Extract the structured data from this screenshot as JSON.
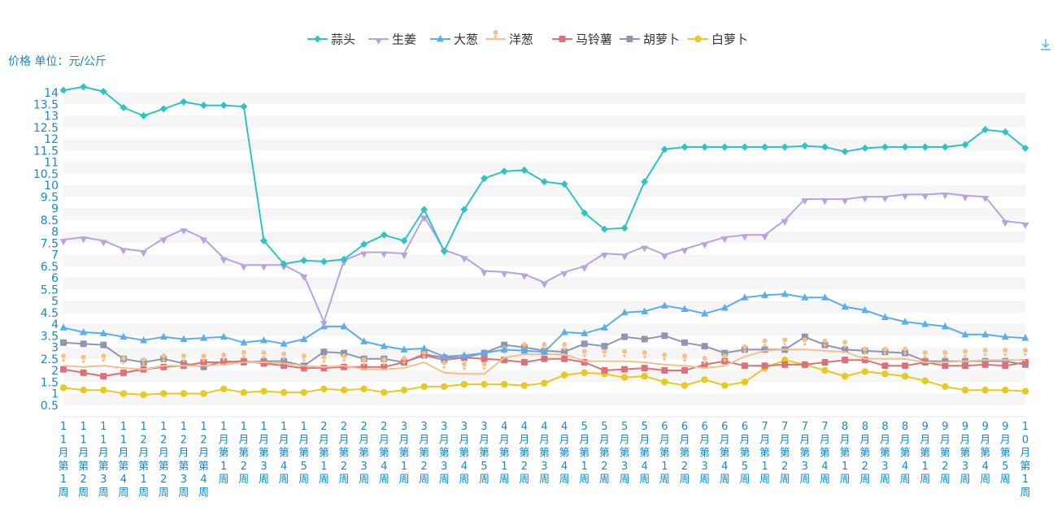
{
  "chart_data": {
    "type": "line",
    "ylabel": "价格 单位：元/公斤",
    "ylim": [
      0,
      14.5
    ],
    "yticks": [
      0.5,
      1,
      1.5,
      2,
      2.5,
      3,
      3.5,
      4,
      4.5,
      5,
      5.5,
      6,
      6.5,
      7,
      7.5,
      8,
      8.5,
      9,
      9.5,
      10,
      10.5,
      11,
      11.5,
      12,
      12.5,
      13,
      13.5,
      14
    ],
    "grid": "horizontal bands",
    "legend_position": "top-center",
    "categories": [
      "11月第1周",
      "11月第2周",
      "11月第3周",
      "11月第4周",
      "12月第1周",
      "12月第2周",
      "12月第3周",
      "12月第4周",
      "1月第1周",
      "1月第2周",
      "1月第3周",
      "1月第4周",
      "1月第5周",
      "2月第1周",
      "2月第2周",
      "2月第3周",
      "2月第4周",
      "3月第1周",
      "3月第2周",
      "3月第3周",
      "3月第4周",
      "3月第5周",
      "4月第1周",
      "4月第2周",
      "4月第3周",
      "4月第4周",
      "5月第1周",
      "5月第2周",
      "5月第3周",
      "5月第4周",
      "6月第1周",
      "6月第2周",
      "6月第3周",
      "6月第4周",
      "6月第5周",
      "7月第1周",
      "7月第2周",
      "7月第3周",
      "7月第4周",
      "8月第1周",
      "8月第2周",
      "8月第3周",
      "8月第4周",
      "9月第1周",
      "9月第2周",
      "9月第3周",
      "9月第4周",
      "9月第5周",
      "10月第1周"
    ],
    "series": [
      {
        "name": "蒜头",
        "color": "#2ec4c4",
        "marker": "diamond",
        "values": [
          14.1,
          14.25,
          14.05,
          13.35,
          13.0,
          13.3,
          13.6,
          13.45,
          13.45,
          13.4,
          7.6,
          6.6,
          6.75,
          6.7,
          6.8,
          7.45,
          7.85,
          7.6,
          8.95,
          7.15,
          8.95,
          10.3,
          10.6,
          10.65,
          10.15,
          10.05,
          8.8,
          8.1,
          8.15,
          10.15,
          11.55,
          11.65,
          11.65,
          11.65,
          11.65,
          11.65,
          11.65,
          11.7,
          11.65,
          11.45,
          11.6,
          11.65,
          11.65,
          11.65,
          11.65,
          11.75,
          12.4,
          12.3,
          11.6
        ]
      },
      {
        "name": "生姜",
        "color": "#b9a2e0",
        "marker": "triangle-down",
        "values": [
          7.65,
          7.75,
          7.6,
          7.25,
          7.15,
          7.7,
          8.1,
          7.7,
          6.85,
          6.55,
          6.55,
          6.55,
          6.1,
          4.1,
          6.75,
          7.1,
          7.1,
          7.05,
          8.65,
          7.2,
          6.9,
          6.3,
          6.25,
          6.15,
          5.8,
          6.25,
          6.5,
          7.05,
          7.0,
          7.35,
          7.0,
          7.25,
          7.5,
          7.75,
          7.85,
          7.85,
          8.5,
          9.4,
          9.4,
          9.4,
          9.5,
          9.5,
          9.6,
          9.6,
          9.65,
          9.55,
          9.5,
          8.45,
          8.35
        ]
      },
      {
        "name": "大葱",
        "color": "#5aaef0",
        "marker": "triangle-up",
        "values": [
          3.85,
          3.65,
          3.6,
          3.45,
          3.3,
          3.45,
          3.35,
          3.4,
          3.45,
          3.2,
          3.3,
          3.15,
          3.35,
          3.9,
          3.9,
          3.25,
          3.05,
          2.9,
          2.95,
          2.6,
          2.65,
          2.75,
          2.9,
          2.85,
          2.8,
          3.65,
          3.6,
          3.85,
          4.5,
          4.55,
          4.8,
          4.65,
          4.45,
          4.7,
          5.15,
          5.25,
          5.3,
          5.15,
          5.15,
          4.75,
          4.6,
          4.3,
          4.1,
          4.0,
          3.9,
          3.55,
          3.55,
          3.45,
          3.4
        ]
      },
      {
        "name": "洋葱",
        "color": "#f5c08a",
        "marker": "pin",
        "values": [
          2.2,
          2.15,
          2.2,
          2.1,
          2.05,
          2.2,
          2.2,
          2.2,
          2.25,
          2.35,
          2.35,
          2.3,
          2.2,
          2.15,
          2.2,
          2.05,
          2.05,
          2.1,
          2.35,
          1.9,
          1.85,
          1.85,
          2.55,
          2.7,
          2.7,
          2.7,
          2.4,
          2.4,
          2.4,
          2.35,
          2.25,
          2.2,
          2.1,
          2.2,
          2.6,
          2.85,
          2.9,
          2.9,
          2.85,
          2.8,
          2.5,
          2.5,
          2.5,
          2.35,
          2.35,
          2.4,
          2.45,
          2.45,
          2.45
        ]
      },
      {
        "name": "马铃薯",
        "color": "#dd7179",
        "marker": "square",
        "values": [
          2.05,
          1.9,
          1.75,
          1.9,
          2.05,
          2.15,
          2.2,
          2.35,
          2.35,
          2.4,
          2.3,
          2.2,
          2.1,
          2.1,
          2.15,
          2.15,
          2.15,
          2.35,
          2.7,
          2.55,
          2.55,
          2.5,
          2.45,
          2.35,
          2.5,
          2.5,
          2.35,
          2.0,
          2.05,
          2.1,
          2.0,
          2.0,
          2.25,
          2.4,
          2.2,
          2.2,
          2.25,
          2.25,
          2.35,
          2.45,
          2.45,
          2.2,
          2.2,
          2.35,
          2.2,
          2.2,
          2.25,
          2.2,
          2.35
        ]
      },
      {
        "name": "胡萝卜",
        "color": "#8e96b5",
        "marker": "square",
        "values": [
          3.2,
          3.15,
          3.1,
          2.5,
          2.35,
          2.5,
          2.3,
          2.15,
          2.4,
          2.35,
          2.4,
          2.4,
          2.2,
          2.8,
          2.75,
          2.5,
          2.5,
          2.35,
          2.65,
          2.45,
          2.55,
          2.75,
          3.1,
          3.0,
          2.85,
          2.8,
          3.15,
          3.05,
          3.45,
          3.35,
          3.5,
          3.2,
          3.05,
          2.75,
          2.9,
          2.9,
          2.9,
          3.45,
          3.1,
          2.9,
          2.85,
          2.8,
          2.75,
          2.4,
          2.4,
          2.4,
          2.4,
          2.4,
          2.25
        ]
      },
      {
        "name": "白萝卜",
        "color": "#e8c920",
        "marker": "circle",
        "values": [
          1.25,
          1.15,
          1.15,
          1.0,
          0.95,
          1.0,
          1.0,
          1.0,
          1.2,
          1.05,
          1.1,
          1.05,
          1.05,
          1.2,
          1.15,
          1.2,
          1.05,
          1.15,
          1.3,
          1.3,
          1.4,
          1.4,
          1.4,
          1.35,
          1.45,
          1.8,
          1.9,
          1.85,
          1.7,
          1.75,
          1.5,
          1.35,
          1.6,
          1.35,
          1.5,
          2.1,
          2.45,
          2.25,
          2.0,
          1.75,
          1.95,
          1.85,
          1.75,
          1.55,
          1.3,
          1.15,
          1.15,
          1.15,
          1.1
        ]
      }
    ]
  }
}
